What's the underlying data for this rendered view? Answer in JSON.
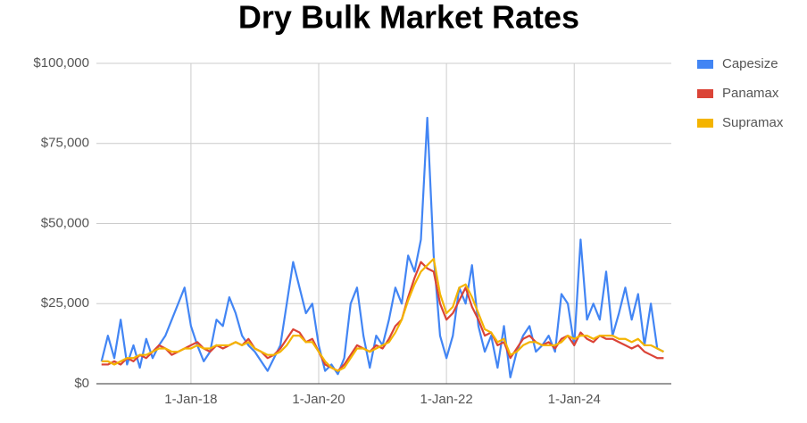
{
  "chart_data": {
    "type": "line",
    "title": "Dry Bulk Market Rates",
    "x": [
      2016.6,
      2016.7,
      2016.8,
      2016.9,
      2017.0,
      2017.1,
      2017.2,
      2017.3,
      2017.4,
      2017.5,
      2017.6,
      2017.7,
      2017.8,
      2017.9,
      2018.0,
      2018.1,
      2018.2,
      2018.3,
      2018.4,
      2018.5,
      2018.6,
      2018.7,
      2018.8,
      2018.9,
      2019.0,
      2019.1,
      2019.2,
      2019.3,
      2019.4,
      2019.5,
      2019.6,
      2019.7,
      2019.8,
      2019.9,
      2020.0,
      2020.1,
      2020.2,
      2020.3,
      2020.4,
      2020.5,
      2020.6,
      2020.7,
      2020.8,
      2020.9,
      2021.0,
      2021.1,
      2021.2,
      2021.3,
      2021.4,
      2021.5,
      2021.6,
      2021.7,
      2021.8,
      2021.9,
      2022.0,
      2022.1,
      2022.2,
      2022.3,
      2022.4,
      2022.5,
      2022.6,
      2022.7,
      2022.8,
      2022.9,
      2023.0,
      2023.1,
      2023.2,
      2023.3,
      2023.4,
      2023.5,
      2023.6,
      2023.7,
      2023.8,
      2023.9,
      2024.0,
      2024.1,
      2024.2,
      2024.3,
      2024.4,
      2024.5,
      2024.6,
      2024.7,
      2024.8,
      2024.9,
      2025.0,
      2025.1,
      2025.2,
      2025.3,
      2025.4
    ],
    "series": [
      {
        "name": "Capesize",
        "color": "#4285f4",
        "values": [
          7000,
          15000,
          8000,
          20000,
          6000,
          12000,
          5000,
          14000,
          8000,
          12000,
          15000,
          20000,
          25000,
          30000,
          18000,
          12000,
          7000,
          10000,
          20000,
          18000,
          27000,
          22000,
          15000,
          12000,
          10000,
          7000,
          4000,
          8000,
          12000,
          25000,
          38000,
          30000,
          22000,
          25000,
          12000,
          4000,
          6000,
          3000,
          8000,
          25000,
          30000,
          15000,
          5000,
          15000,
          12000,
          20000,
          30000,
          25000,
          40000,
          35000,
          45000,
          83000,
          40000,
          15000,
          8000,
          15000,
          30000,
          25000,
          37000,
          18000,
          10000,
          15000,
          5000,
          18000,
          2000,
          10000,
          15000,
          18000,
          10000,
          12000,
          15000,
          10000,
          28000,
          25000,
          12000,
          45000,
          20000,
          25000,
          20000,
          35000,
          15000,
          22000,
          30000,
          20000,
          28000,
          12000,
          25000,
          11000,
          10000
        ]
      },
      {
        "name": "Panamax",
        "color": "#db4437",
        "values": [
          6000,
          6000,
          7000,
          6000,
          8000,
          7000,
          9000,
          8000,
          10000,
          12000,
          11000,
          9000,
          10000,
          11000,
          12000,
          13000,
          11000,
          10000,
          12000,
          11000,
          12000,
          13000,
          12000,
          14000,
          11000,
          10000,
          8000,
          9000,
          11000,
          14000,
          17000,
          16000,
          13000,
          14000,
          10000,
          6000,
          5000,
          4000,
          6000,
          9000,
          12000,
          11000,
          10000,
          12000,
          11000,
          14000,
          18000,
          20000,
          27000,
          33000,
          38000,
          36000,
          35000,
          25000,
          20000,
          22000,
          26000,
          30000,
          24000,
          20000,
          15000,
          16000,
          12000,
          13000,
          8000,
          11000,
          14000,
          15000,
          13000,
          12000,
          13000,
          11000,
          14000,
          15000,
          12000,
          16000,
          14000,
          13000,
          15000,
          14000,
          14000,
          13000,
          12000,
          11000,
          12000,
          10000,
          9000,
          8000,
          8000
        ]
      },
      {
        "name": "Supramax",
        "color": "#f4b400",
        "values": [
          7000,
          7000,
          6000,
          7000,
          8000,
          8000,
          9000,
          9000,
          10000,
          11000,
          11000,
          10000,
          10000,
          11000,
          11000,
          12000,
          11000,
          11000,
          12000,
          12000,
          12000,
          13000,
          12000,
          13000,
          11000,
          10000,
          9000,
          9000,
          10000,
          12000,
          15000,
          15000,
          13000,
          13000,
          10000,
          7000,
          5000,
          4000,
          5000,
          8000,
          11000,
          11000,
          10000,
          11000,
          12000,
          13000,
          16000,
          20000,
          26000,
          31000,
          35000,
          37000,
          39000,
          28000,
          22000,
          24000,
          30000,
          31000,
          27000,
          22000,
          17000,
          16000,
          13000,
          14000,
          9000,
          10000,
          12000,
          13000,
          13000,
          12000,
          12000,
          12000,
          13000,
          15000,
          14000,
          15000,
          15000,
          14000,
          15000,
          15000,
          15000,
          14000,
          14000,
          13000,
          14000,
          12000,
          12000,
          11000,
          10000
        ]
      }
    ],
    "xlim": [
      2016.52,
      2025.52
    ],
    "xticks": [
      {
        "value": 2018,
        "label": "1-Jan-18"
      },
      {
        "value": 2020,
        "label": "1-Jan-20"
      },
      {
        "value": 2022,
        "label": "1-Jan-22"
      },
      {
        "value": 2024,
        "label": "1-Jan-24"
      }
    ],
    "ylim": [
      0,
      100000
    ],
    "yticks": [
      {
        "value": 0,
        "label": "$0"
      },
      {
        "value": 25000,
        "label": "$25,000"
      },
      {
        "value": 50000,
        "label": "$50,000"
      },
      {
        "value": 75000,
        "label": "$75,000"
      },
      {
        "value": 100000,
        "label": "$100,000"
      }
    ],
    "grid": true,
    "legend": "right"
  }
}
